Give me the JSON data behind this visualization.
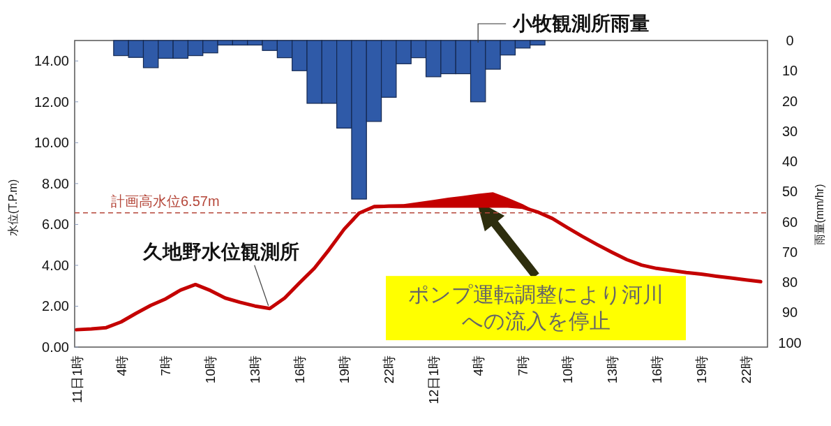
{
  "chart_data": {
    "type": "line",
    "categories": [
      "11日1時",
      null,
      null,
      "4時",
      null,
      null,
      "7時",
      null,
      null,
      "10時",
      null,
      null,
      "13時",
      null,
      null,
      "16時",
      null,
      null,
      "19時",
      null,
      null,
      "22時",
      null,
      null,
      "12日1時",
      null,
      null,
      "4時",
      null,
      null,
      "7時",
      null,
      null,
      "10時",
      null,
      null,
      "13時",
      null,
      null,
      "16時",
      null,
      null,
      "19時",
      null,
      null,
      "22時",
      null
    ],
    "ylim": [
      0,
      15
    ],
    "yticks": [
      {
        "value": 0,
        "label": "0.00"
      },
      {
        "value": 2,
        "label": "2.00"
      },
      {
        "value": 4,
        "label": "4.00"
      },
      {
        "value": 6,
        "label": "6.00"
      },
      {
        "value": 8,
        "label": "8.00"
      },
      {
        "value": 10,
        "label": "10.00"
      },
      {
        "value": 12,
        "label": "12.00"
      },
      {
        "value": 14,
        "label": "14.00"
      }
    ],
    "ylabel": "水位(T.P.m)",
    "y2label": "雨量(mm/hr)",
    "y2lim": [
      101.5,
      0
    ],
    "y2ticks": [
      0,
      10,
      20,
      30,
      40,
      50,
      60,
      70,
      80,
      90,
      100
    ],
    "series": [
      {
        "name": "小牧観測所雨量",
        "type": "bar",
        "axis": "y2",
        "color": "#2f5aa8",
        "values": [
          null,
          null,
          null,
          5,
          5.6,
          9,
          5.9,
          5.9,
          5,
          4.1,
          1.5,
          1.5,
          1.5,
          3.3,
          5.7,
          10,
          20.8,
          20.8,
          29,
          52.5,
          26.8,
          18.8,
          7.7,
          5.7,
          12,
          11,
          11,
          20.3,
          9.5,
          4.8,
          2.5,
          1.5,
          null,
          null,
          null,
          null,
          null,
          null,
          null,
          null,
          null,
          null,
          null,
          null,
          null,
          null,
          null
        ]
      },
      {
        "name": "久地野水位観測所",
        "color": "#c40000",
        "values": [
          0.85,
          0.89,
          0.95,
          1.23,
          1.65,
          2.04,
          2.36,
          2.79,
          3.06,
          2.77,
          2.4,
          2.19,
          2.01,
          1.89,
          2.4,
          3.14,
          3.86,
          4.78,
          5.77,
          6.55,
          6.87,
          6.89,
          6.89,
          6.9,
          6.9,
          6.9,
          6.9,
          6.9,
          6.9,
          6.9,
          6.84,
          6.61,
          6.29,
          5.85,
          5.42,
          5.02,
          4.64,
          4.28,
          4.01,
          3.85,
          3.75,
          3.65,
          3.57,
          3.47,
          3.38,
          3.29,
          3.2
        ],
        "lower": [
          null,
          null,
          null,
          null,
          null,
          null,
          null,
          null,
          null,
          null,
          null,
          null,
          null,
          null,
          null,
          null,
          null,
          null,
          null,
          6.55,
          6.87,
          6.89,
          6.89,
          6.9,
          6.9,
          6.9,
          6.9,
          6.9,
          6.9,
          6.9,
          6.84,
          6.61,
          null,
          null,
          null,
          null,
          null,
          null,
          null,
          null,
          null,
          null,
          null,
          null,
          null,
          null,
          null
        ],
        "upper": [
          null,
          null,
          null,
          null,
          null,
          null,
          null,
          null,
          null,
          null,
          null,
          null,
          null,
          null,
          null,
          null,
          null,
          null,
          null,
          6.55,
          6.95,
          6.98,
          7.0,
          7.1,
          7.2,
          7.31,
          7.4,
          7.5,
          7.58,
          7.3,
          7.0,
          6.61,
          null,
          null,
          null,
          null,
          null,
          null,
          null,
          null,
          null,
          null,
          null,
          null,
          null,
          null,
          null
        ]
      }
    ],
    "ref_lines": [
      {
        "axis": "y",
        "value": 6.57,
        "label": "計画高水位6.57m",
        "color": "#b5473a",
        "line_style": "dashed"
      }
    ],
    "annotations": [
      "ポンプ運転調整により河川への流入を停止"
    ]
  }
}
